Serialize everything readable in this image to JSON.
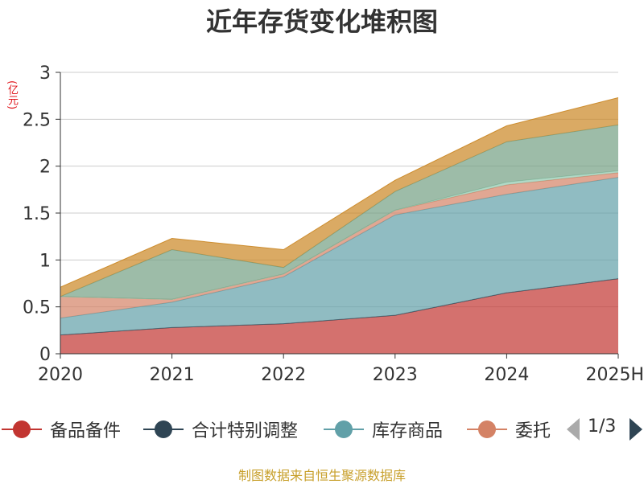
{
  "chart_data": {
    "type": "area",
    "stacked": true,
    "title": "近年存货变化堆积图",
    "unit_label": "(亿元)",
    "categories": [
      "2020",
      "2021",
      "2022",
      "2023",
      "2024",
      "2025H"
    ],
    "y_ticks": [
      "0",
      "0.5",
      "1",
      "1.5",
      "2",
      "2.5",
      "3"
    ],
    "ylim": [
      0,
      3
    ],
    "grid": true,
    "series": [
      {
        "name": "备品备件",
        "color": "#c23531",
        "values": [
          0.2,
          0.28,
          0.32,
          0.41,
          0.65,
          0.8
        ]
      },
      {
        "name": "合计特别调整",
        "color": "#2f4554",
        "values": [
          0.0,
          0.0,
          0.0,
          0.0,
          0.0,
          0.0
        ]
      },
      {
        "name": "库存商品",
        "color": "#61a0a8",
        "values": [
          0.18,
          0.27,
          0.5,
          1.07,
          1.05,
          1.08
        ]
      },
      {
        "name": "委托加工物资",
        "color": "#d48265",
        "values": [
          0.23,
          0.03,
          0.03,
          0.05,
          0.1,
          0.05
        ]
      },
      {
        "name": "",
        "color": "#91c7ae",
        "values": [
          0.0,
          0.0,
          0.0,
          0.0,
          0.03,
          0.02
        ]
      },
      {
        "name": "",
        "color": "#749f83",
        "values": [
          0.0,
          0.53,
          0.07,
          0.2,
          0.43,
          0.49
        ]
      },
      {
        "name": "",
        "color": "#ca8622",
        "values": [
          0.1,
          0.12,
          0.19,
          0.12,
          0.17,
          0.29
        ]
      }
    ],
    "legend_visible": [
      "备品备件",
      "合计特别调整",
      "库存商品",
      "委托"
    ],
    "legend_placement": "bottom"
  },
  "legend": {
    "page": "1/3"
  },
  "source": "制图数据来自恒生聚源数据库"
}
